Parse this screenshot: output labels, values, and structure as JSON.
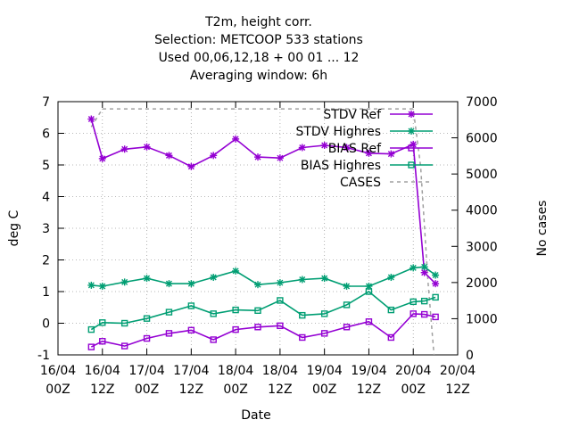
{
  "chart_data": {
    "type": "line",
    "title_lines": [
      "T2m, height corr.",
      "Selection: METCOOP    533 stations",
      "Used  00,06,12,18 + 00 01 ... 12",
      "Averaging window:  6h"
    ],
    "xlabel": "Date",
    "ylabel": "deg C",
    "y2label": "No cases",
    "xlim": [
      0,
      108
    ],
    "ylim": [
      -1,
      7
    ],
    "y2lim": [
      0,
      7000
    ],
    "x_ticks": [
      {
        "v": 0,
        "l1": "16/04",
        "l2": "00Z"
      },
      {
        "v": 12,
        "l1": "16/04",
        "l2": "12Z"
      },
      {
        "v": 24,
        "l1": "17/04",
        "l2": "00Z"
      },
      {
        "v": 36,
        "l1": "17/04",
        "l2": "12Z"
      },
      {
        "v": 48,
        "l1": "18/04",
        "l2": "00Z"
      },
      {
        "v": 60,
        "l1": "18/04",
        "l2": "12Z"
      },
      {
        "v": 72,
        "l1": "19/04",
        "l2": "00Z"
      },
      {
        "v": 84,
        "l1": "19/04",
        "l2": "12Z"
      },
      {
        "v": 96,
        "l1": "20/04",
        "l2": "00Z"
      },
      {
        "v": 108,
        "l1": "20/04",
        "l2": "12Z"
      }
    ],
    "y_ticks": [
      "-1",
      "0",
      "1",
      "2",
      "3",
      "4",
      "5",
      "6",
      "7"
    ],
    "y2_ticks": [
      "0",
      "1000",
      "2000",
      "3000",
      "4000",
      "5000",
      "6000",
      "7000"
    ],
    "grid": true,
    "legend_position": "top-right",
    "series": [
      {
        "name": "STDV Ref",
        "axis": "y",
        "color": "#9400d3",
        "marker": "star",
        "x": [
          9,
          12,
          18,
          24,
          30,
          36,
          42,
          48,
          54,
          60,
          66,
          72,
          78,
          84,
          90,
          96,
          99,
          102
        ],
        "y": [
          6.45,
          5.2,
          5.5,
          5.57,
          5.3,
          4.95,
          5.3,
          5.82,
          5.25,
          5.22,
          5.55,
          5.62,
          5.55,
          5.37,
          5.35,
          5.65,
          1.6,
          1.25
        ]
      },
      {
        "name": "STDV Highres",
        "axis": "y",
        "color": "#009e73",
        "marker": "star",
        "x": [
          9,
          12,
          18,
          24,
          30,
          36,
          42,
          48,
          54,
          60,
          66,
          72,
          78,
          84,
          90,
          96,
          99,
          102
        ],
        "y": [
          1.2,
          1.17,
          1.3,
          1.42,
          1.25,
          1.25,
          1.45,
          1.65,
          1.22,
          1.28,
          1.38,
          1.42,
          1.17,
          1.17,
          1.45,
          1.75,
          1.78,
          1.52
        ]
      },
      {
        "name": "BIAS Ref",
        "axis": "y",
        "color": "#9400d3",
        "marker": "square",
        "x": [
          9,
          12,
          18,
          24,
          30,
          36,
          42,
          48,
          54,
          60,
          66,
          72,
          78,
          84,
          90,
          96,
          99,
          102
        ],
        "y": [
          -0.75,
          -0.57,
          -0.72,
          -0.48,
          -0.32,
          -0.22,
          -0.52,
          -0.2,
          -0.12,
          -0.08,
          -0.45,
          -0.32,
          -0.12,
          0.05,
          -0.45,
          0.3,
          0.28,
          0.2
        ]
      },
      {
        "name": "BIAS Highres",
        "axis": "y",
        "color": "#009e73",
        "marker": "square",
        "x": [
          9,
          12,
          18,
          24,
          30,
          36,
          42,
          48,
          54,
          60,
          66,
          72,
          78,
          84,
          90,
          96,
          99,
          102
        ],
        "y": [
          -0.2,
          0.02,
          0.0,
          0.15,
          0.35,
          0.55,
          0.3,
          0.42,
          0.4,
          0.72,
          0.25,
          0.3,
          0.58,
          1.0,
          0.42,
          0.68,
          0.7,
          0.82
        ]
      },
      {
        "name": "CASES",
        "axis": "y2",
        "color": "#a0a0a0",
        "marker": "none",
        "dash": true,
        "x": [
          9,
          12,
          18,
          24,
          36,
          48,
          60,
          72,
          84,
          96,
          98,
          100,
          102
        ],
        "y": [
          6300,
          6800,
          6800,
          6800,
          6800,
          6800,
          6800,
          6800,
          6800,
          6800,
          5200,
          2000,
          -500
        ]
      }
    ]
  }
}
